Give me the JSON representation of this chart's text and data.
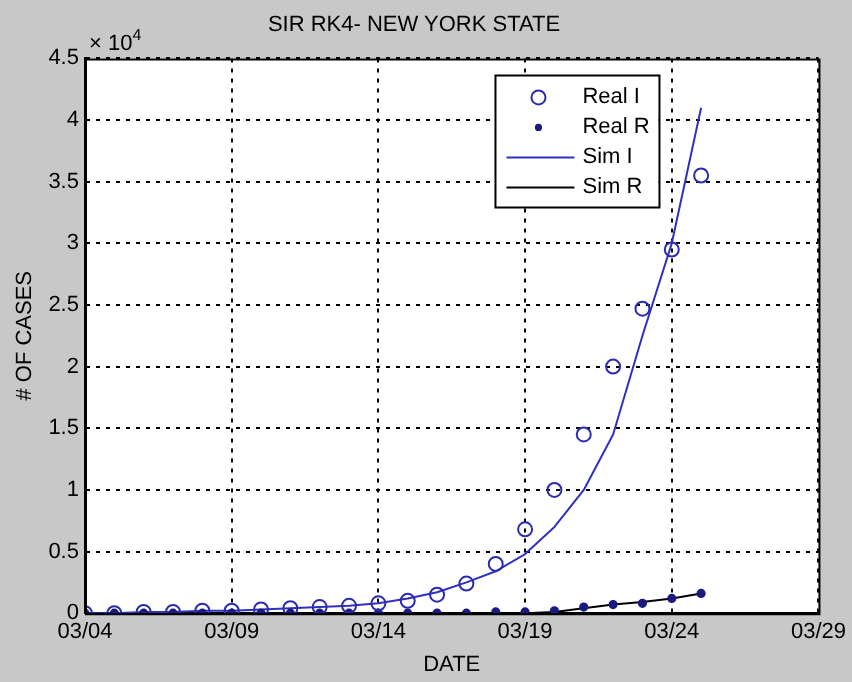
{
  "chart_data": {
    "type": "line",
    "title": "SIR RK4- NEW YORK STATE",
    "xlabel": "DATE",
    "ylabel": "# OF CASES",
    "annotations": [
      "× 10$^{4}$"
    ],
    "x": [
      "--03-04",
      "--03-05",
      "--03-06",
      "--03-07",
      "--03-08",
      "--03-09",
      "--03-10",
      "--03-11",
      "--03-12",
      "--03-13",
      "--03-14",
      "--03-15",
      "--03-16",
      "--03-17",
      "--03-18",
      "--03-19",
      "--03-20",
      "--03-21",
      "--03-22",
      "--03-23",
      "--03-24",
      "--03-25"
    ],
    "series": [
      {
        "name": "Real I",
        "type": "scatter",
        "marker": "circle",
        "color": "#2b2bb0",
        "values": [
          0,
          0,
          0.01,
          0.01,
          0.02,
          0.02,
          0.03,
          0.04,
          0.05,
          0.06,
          0.08,
          0.1,
          0.15,
          0.24,
          0.4,
          0.68,
          1.0,
          1.45,
          2.0,
          2.47,
          2.95,
          3.55
        ]
      },
      {
        "name": "Real R",
        "type": "scatter",
        "marker": "circle",
        "color": "#1a1a80",
        "values": [
          0,
          0,
          0,
          0,
          0,
          0,
          0,
          0,
          0,
          0,
          0,
          0,
          0,
          0,
          0.01,
          0.01,
          0.02,
          0.05,
          0.07,
          0.08,
          0.12,
          0.16
        ]
      },
      {
        "name": "Sim I",
        "type": "line",
        "marker": "none",
        "color": "#3030c0",
        "values": [
          0,
          0,
          0.01,
          0.01,
          0.02,
          0.02,
          0.03,
          0.04,
          0.05,
          0.06,
          0.08,
          0.12,
          0.17,
          0.25,
          0.34,
          0.48,
          0.7,
          1.0,
          1.45,
          2.25,
          3.0,
          4.1
        ]
      },
      {
        "name": "Sim R",
        "type": "line",
        "marker": "none",
        "color": "#000000",
        "values": [
          0,
          0,
          0,
          0,
          0,
          0,
          0,
          0,
          0,
          0,
          0,
          0,
          0,
          0,
          0,
          0,
          0.01,
          0.04,
          0.07,
          0.09,
          0.12,
          0.16
        ]
      }
    ],
    "xlim": [
      "--03-04",
      "--03-29"
    ],
    "xticks": [
      {
        "value": "--03-04",
        "label": "03/04"
      },
      {
        "value": "--03-09",
        "label": "03/09"
      },
      {
        "value": "--03-14",
        "label": "03/14"
      },
      {
        "value": "--03-19",
        "label": "03/19"
      },
      {
        "value": "--03-24",
        "label": "03/24"
      },
      {
        "value": "--03-29",
        "label": "03/29"
      }
    ],
    "ylim": [
      0,
      4.5
    ],
    "yticks": [
      0,
      0.5,
      1,
      1.5,
      2,
      2.5,
      3,
      3.5,
      4,
      4.5
    ],
    "grid": true,
    "legend": "top right",
    "line_style": "solid"
  }
}
